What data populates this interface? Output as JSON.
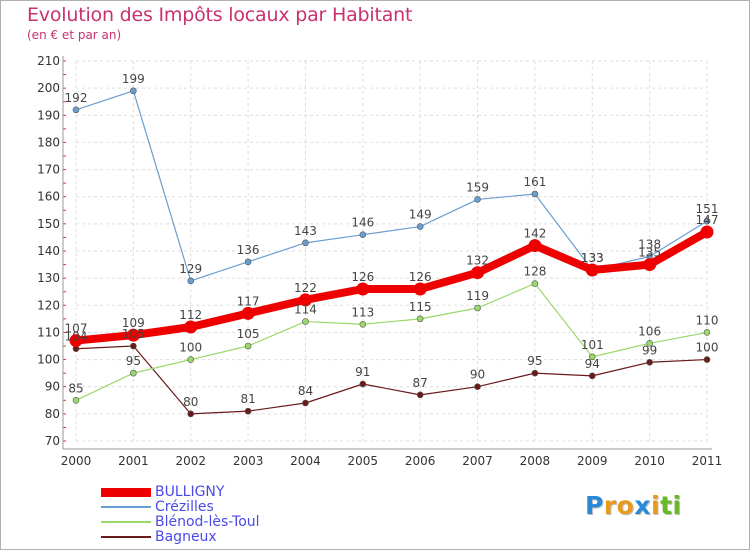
{
  "chart_data": {
    "type": "line",
    "title": "Evolution des Impôts locaux par Habitant",
    "subtitle": "(en € et par an)",
    "xlabel": "",
    "ylabel": "",
    "ylim": [
      70,
      210
    ],
    "yticks": [
      70,
      80,
      90,
      100,
      110,
      120,
      130,
      140,
      150,
      160,
      170,
      180,
      190,
      200,
      210
    ],
    "categories": [
      "2000",
      "2001",
      "2002",
      "2003",
      "2004",
      "2005",
      "2006",
      "2007",
      "2008",
      "2009",
      "2010",
      "2011"
    ],
    "grid": true,
    "legend_position": "bottom-left",
    "series": [
      {
        "name": "BULLIGNY",
        "color": "#ee0000",
        "values": [
          107,
          109,
          112,
          117,
          122,
          126,
          126,
          132,
          142,
          133,
          135,
          147
        ]
      },
      {
        "name": "Crézilles",
        "color": "#6a9ed0",
        "values": [
          192,
          199,
          129,
          136,
          143,
          146,
          149,
          159,
          161,
          133,
          138,
          151
        ]
      },
      {
        "name": "Blénod-lès-Toul",
        "color": "#9ad86a",
        "values": [
          85,
          95,
          100,
          105,
          114,
          113,
          115,
          119,
          128,
          101,
          106,
          110
        ]
      },
      {
        "name": "Bagneux",
        "color": "#6b1a1a",
        "values": [
          104,
          105,
          80,
          81,
          84,
          91,
          87,
          90,
          95,
          94,
          99,
          100
        ]
      }
    ]
  },
  "logo": {
    "text": "Proxiti",
    "letters": [
      "P",
      "r",
      "o",
      "x",
      "i",
      "t",
      "i"
    ],
    "colors": [
      "#2a8ad8",
      "#e89a1a",
      "#e89a1a",
      "#2a8ad8",
      "#e89a1a",
      "#6ab82a",
      "#6ab82a"
    ]
  }
}
